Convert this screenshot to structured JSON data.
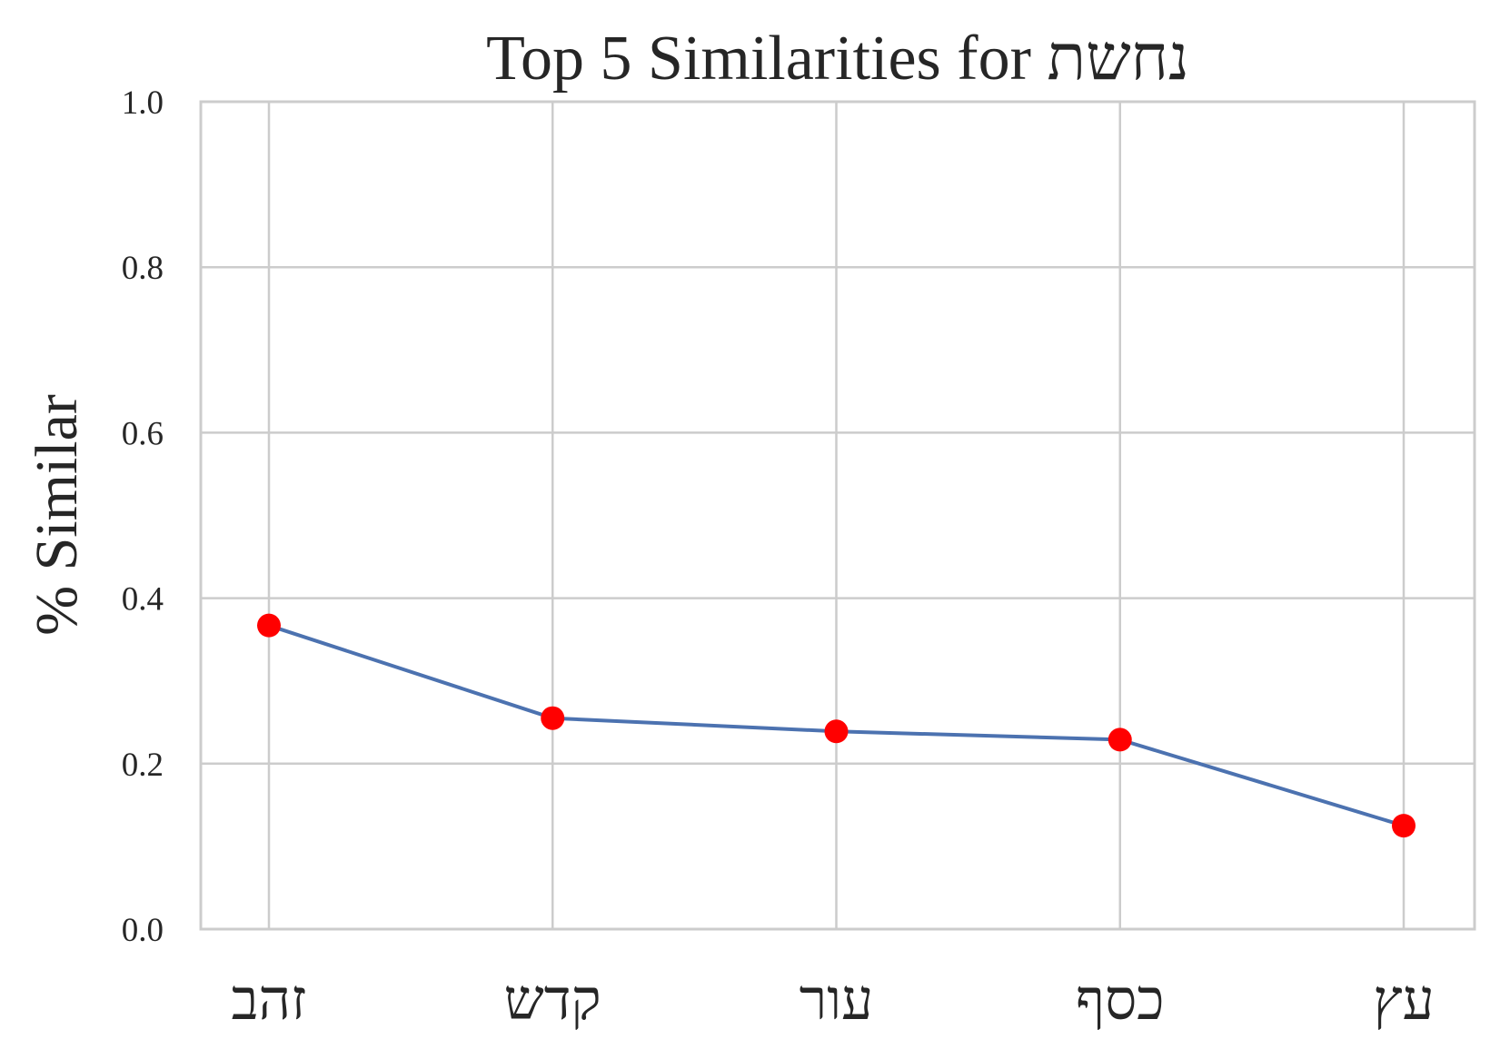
{
  "chart_data": {
    "type": "line",
    "title": "Top 5 Similarities for נחשת",
    "xlabel": "",
    "ylabel": "% Similar",
    "categories": [
      "זהב",
      "קדש",
      "עור",
      "כסף",
      "עץ"
    ],
    "values": [
      0.367,
      0.255,
      0.239,
      0.229,
      0.125
    ],
    "ylim": [
      0.0,
      1.0
    ],
    "yticks": [
      "0.0",
      "0.2",
      "0.4",
      "0.6",
      "0.8",
      "1.0"
    ],
    "grid": true,
    "colors": {
      "line": "#4c72b0",
      "points": "#ff0000",
      "grid": "#cccccc"
    }
  }
}
